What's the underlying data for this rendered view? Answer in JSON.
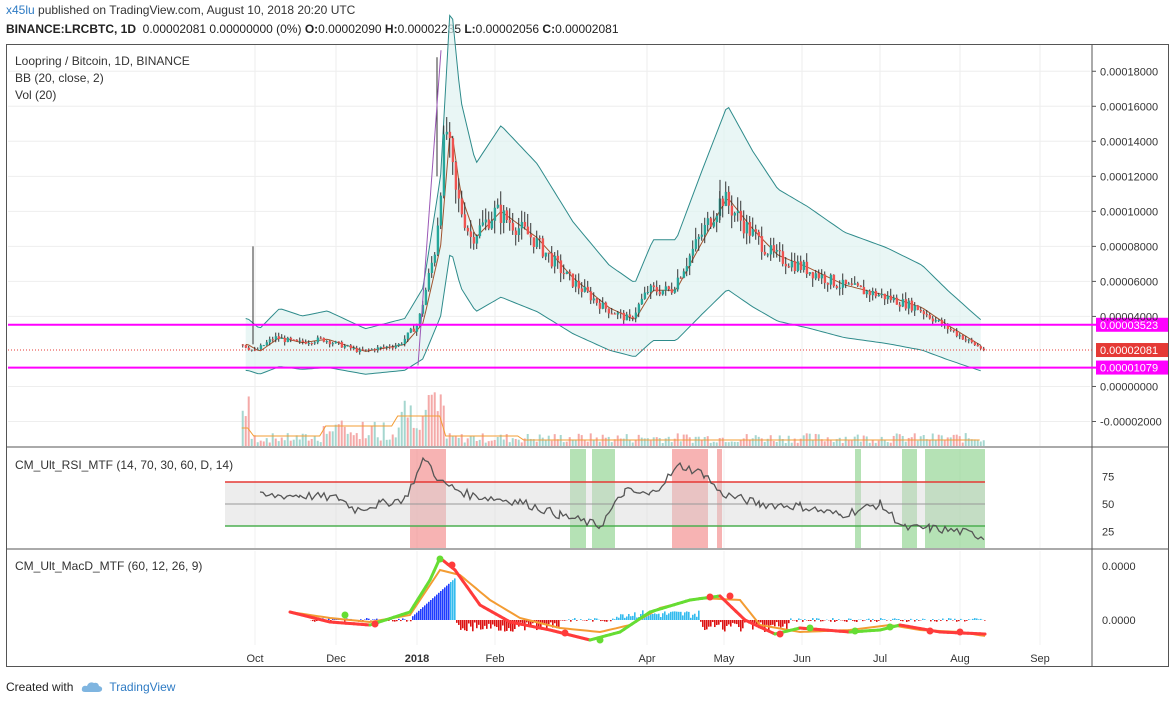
{
  "header": {
    "user": "x45lu",
    "published": "published on TradingView.com, August 10, 2018 20:20 UTC",
    "symbol": "BINANCE:LRCBTC, 1D",
    "ohlc_rest": "0.00002081 0.00000000 (0%)",
    "o_label": "O:",
    "o_val": "0.00002090",
    "h_label": "H:",
    "h_val": "0.00002235",
    "l_label": "L:",
    "l_val": "0.00002056",
    "c_label": "C:",
    "c_val": "0.00002081"
  },
  "main_pane": {
    "title": "Loopring / Bitcoin, 1D, BINANCE",
    "bb_label": "BB (20, close, 2)",
    "vol_label": "Vol (20)"
  },
  "rsi_pane": {
    "label": "CM_Ult_RSI_MTF (14, 70, 30, 60, D, 14)"
  },
  "macd_pane": {
    "label": "CM_Ult_MacD_MTF (60, 12, 26, 9)"
  },
  "footer": {
    "created": "Created with",
    "brand": "TradingView"
  },
  "colors": {
    "magenta": "#ff00ff",
    "price_badge": "#e53935",
    "bull": "#26a69a",
    "bear": "#ef5350",
    "bb_band": "#2e8b8b",
    "bb_fill": "#e0f2f1",
    "bb_mid": "#a0522d",
    "rsi_line": "#555555",
    "rsi_upper": "#e53935",
    "rsi_lower": "#4caf50",
    "macd_fast": "#66dd33",
    "macd_slow": "#f39c33",
    "macd_red": "#ff3b3b"
  },
  "chart_data": {
    "type": "line",
    "x_ticks": [
      "Oct",
      "Dec",
      "2018",
      "Feb",
      "Apr",
      "May",
      "Jun",
      "Jul",
      "Aug",
      "Sep"
    ],
    "y_ticks": [
      "0.00018000",
      "0.00016000",
      "0.00014000",
      "0.00012000",
      "0.00010000",
      "0.00008000",
      "0.00006000",
      "0.00004000",
      "0.00000000",
      "-0.00002000"
    ],
    "ylim": [
      -3.4e-05,
      0.000195
    ],
    "horizontal_lines": [
      {
        "value": 3.523e-05,
        "label": "0.00003523"
      },
      {
        "value": 1.079e-05,
        "label": "0.00001079"
      }
    ],
    "last_price": {
      "value": 2.081e-05,
      "label": "0.00002081"
    },
    "price_series": {
      "x": [
        "2017-09-21",
        "2017-09-30",
        "2017-10-15",
        "2017-11-01",
        "2017-11-20",
        "2017-12-10",
        "2017-12-25",
        "2018-01-01",
        "2018-01-08",
        "2018-01-12",
        "2018-01-16",
        "2018-01-22",
        "2018-02-01",
        "2018-02-15",
        "2018-03-01",
        "2018-03-15",
        "2018-03-25",
        "2018-04-01",
        "2018-04-10",
        "2018-04-20",
        "2018-04-30",
        "2018-05-10",
        "2018-05-20",
        "2018-06-01",
        "2018-06-15",
        "2018-07-01",
        "2018-07-15",
        "2018-07-25",
        "2018-08-05",
        "2018-08-10"
      ],
      "close": [
        2.4e-05,
        2e-05,
        2.8e-05,
        2.5e-05,
        2.7e-05,
        2e-05,
        2.4e-05,
        3.6e-05,
        8e-05,
        0.00015,
        0.00011,
        8.5e-05,
        0.0001,
        8.5e-05,
        6.2e-05,
        4.5e-05,
        3.8e-05,
        5.5e-05,
        5.5e-05,
        8.2e-05,
        0.000108,
        9e-05,
        7.5e-05,
        6.8e-05,
        5.8e-05,
        5.2e-05,
        4.5e-05,
        3.5e-05,
        2.5e-05,
        2.08e-05
      ]
    },
    "rsi": {
      "y_ticks": [
        "75",
        "50",
        "25"
      ],
      "ylim": [
        10,
        100
      ],
      "upper": 70,
      "lower": 30
    },
    "macd": {
      "y_ticks": [
        "0.0000",
        "0.0000"
      ]
    }
  }
}
